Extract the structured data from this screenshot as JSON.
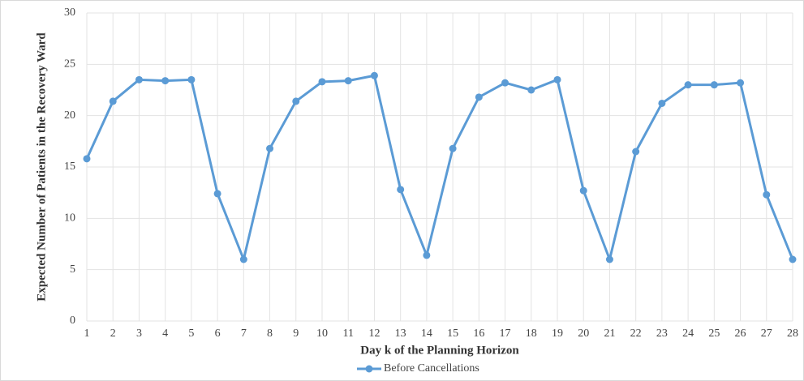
{
  "chart_data": {
    "type": "line",
    "x_label": "Day k of the Planning Horizon",
    "y_label": "Expected Number of Patients in the Recovery Ward",
    "x": [
      1,
      2,
      3,
      4,
      5,
      6,
      7,
      8,
      9,
      10,
      11,
      12,
      13,
      14,
      15,
      16,
      17,
      18,
      19,
      20,
      21,
      22,
      23,
      24,
      25,
      26,
      27,
      28
    ],
    "series": [
      {
        "name": "Before Cancellations",
        "color": "#5b9bd5",
        "values": [
          15.8,
          21.4,
          23.5,
          23.4,
          23.5,
          12.4,
          6.0,
          16.8,
          21.4,
          23.3,
          23.4,
          23.9,
          12.8,
          6.4,
          16.8,
          21.8,
          23.2,
          22.5,
          23.5,
          12.7,
          6.0,
          16.5,
          21.2,
          23.0,
          23.0,
          23.2,
          12.3,
          6.0
        ]
      }
    ],
    "xlim": [
      1,
      28
    ],
    "xticks": [
      1,
      2,
      3,
      4,
      5,
      6,
      7,
      8,
      9,
      10,
      11,
      12,
      13,
      14,
      15,
      16,
      17,
      18,
      19,
      20,
      21,
      22,
      23,
      24,
      25,
      26,
      27,
      28
    ],
    "ylim": [
      0,
      30
    ],
    "yticks": [
      0,
      5,
      10,
      15,
      20,
      25,
      30
    ],
    "grid": true,
    "legend": "bottom"
  }
}
